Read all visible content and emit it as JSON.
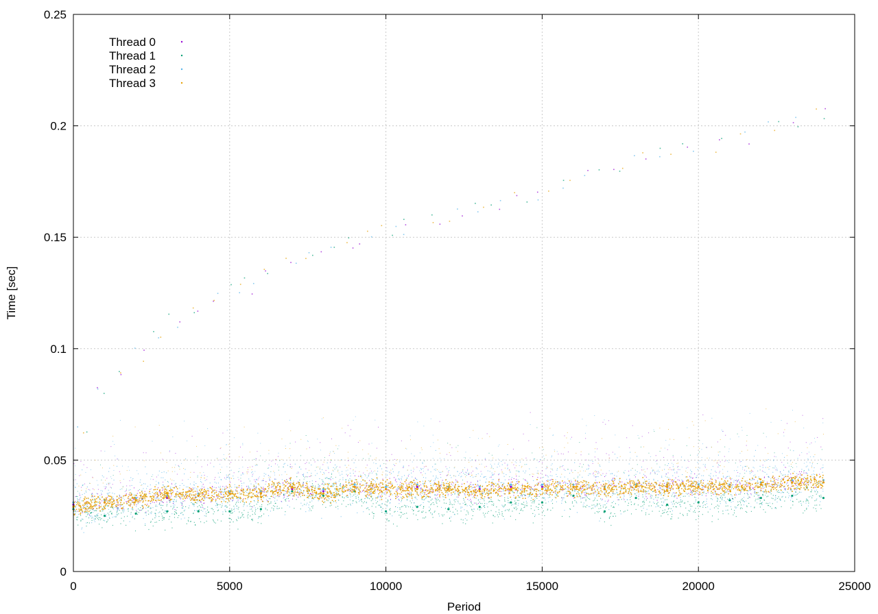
{
  "chart_data": {
    "type": "scatter",
    "title": "",
    "xlabel": "Period",
    "ylabel": "Time [sec]",
    "xlim": [
      0,
      25000
    ],
    "ylim": [
      0,
      0.25
    ],
    "x_ticks": [
      0,
      5000,
      10000,
      15000,
      20000,
      25000
    ],
    "x_tick_labels": [
      "0",
      "5000",
      "10000",
      "15000",
      "20000",
      "25000"
    ],
    "y_ticks": [
      0,
      0.05,
      0.1,
      0.15,
      0.2,
      0.25
    ],
    "y_tick_labels": [
      "0",
      "0.05",
      "0.1",
      "0.15",
      "0.2",
      "0.25"
    ],
    "grid": true,
    "legend_position": "top-left",
    "series": [
      {
        "name": "Thread 0",
        "color": "#9400d3",
        "x": [
          0,
          1000,
          2000,
          3000,
          4000,
          5000,
          6000,
          7000,
          8000,
          9000,
          10000,
          11000,
          12000,
          13000,
          14000,
          15000,
          16000,
          17000,
          18000,
          19000,
          20000,
          21000,
          22000,
          23000,
          24000
        ],
        "y": [
          0.03,
          0.031,
          0.032,
          0.033,
          0.034,
          0.035,
          0.035,
          0.037,
          0.036,
          0.038,
          0.037,
          0.038,
          0.037,
          0.037,
          0.038,
          0.038,
          0.038,
          0.037,
          0.038,
          0.038,
          0.038,
          0.038,
          0.039,
          0.04,
          0.04
        ]
      },
      {
        "name": "Thread 1",
        "color": "#009e73",
        "x": [
          0,
          1000,
          2000,
          3000,
          4000,
          5000,
          6000,
          7000,
          8000,
          9000,
          10000,
          11000,
          12000,
          13000,
          14000,
          15000,
          16000,
          17000,
          18000,
          19000,
          20000,
          21000,
          22000,
          23000,
          24000
        ],
        "y": [
          0.028,
          0.025,
          0.026,
          0.027,
          0.027,
          0.027,
          0.028,
          0.036,
          0.034,
          0.036,
          0.027,
          0.029,
          0.028,
          0.029,
          0.031,
          0.031,
          0.034,
          0.027,
          0.033,
          0.03,
          0.031,
          0.032,
          0.033,
          0.034,
          0.033
        ]
      },
      {
        "name": "Thread 2",
        "color": "#56b4e9",
        "x": [
          0,
          1000,
          2000,
          3000,
          4000,
          5000,
          6000,
          7000,
          8000,
          9000,
          10000,
          11000,
          12000,
          13000,
          14000,
          15000,
          16000,
          17000,
          18000,
          19000,
          20000,
          21000,
          22000,
          23000,
          24000
        ],
        "y": [
          0.031,
          0.032,
          0.033,
          0.034,
          0.035,
          0.036,
          0.036,
          0.038,
          0.037,
          0.039,
          0.038,
          0.039,
          0.038,
          0.038,
          0.039,
          0.039,
          0.039,
          0.038,
          0.039,
          0.039,
          0.039,
          0.039,
          0.04,
          0.041,
          0.041
        ]
      },
      {
        "name": "Thread 3",
        "color": "#e69f00",
        "x": [
          0,
          1000,
          2000,
          3000,
          4000,
          5000,
          6000,
          7000,
          8000,
          9000,
          10000,
          11000,
          12000,
          13000,
          14000,
          15000,
          16000,
          17000,
          18000,
          19000,
          20000,
          21000,
          22000,
          23000,
          24000
        ],
        "y": [
          0.029,
          0.031,
          0.032,
          0.035,
          0.034,
          0.035,
          0.035,
          0.038,
          0.035,
          0.038,
          0.037,
          0.037,
          0.037,
          0.036,
          0.037,
          0.037,
          0.038,
          0.037,
          0.038,
          0.038,
          0.038,
          0.038,
          0.039,
          0.04,
          0.04
        ]
      }
    ],
    "outliers": {
      "x": [
        300,
        900,
        1500,
        2100,
        2700,
        3300,
        3900,
        4500,
        5100,
        5700,
        6300,
        6900,
        7500,
        8100,
        8700,
        9300,
        10100,
        10800,
        11500,
        12200,
        12900,
        13600,
        14300,
        15000,
        15800,
        16600,
        17400,
        18200,
        19000,
        19700,
        20600,
        21500,
        22400,
        23200,
        23900
      ],
      "y": [
        0.065,
        0.08,
        0.09,
        0.098,
        0.104,
        0.112,
        0.118,
        0.122,
        0.125,
        0.128,
        0.133,
        0.137,
        0.141,
        0.145,
        0.148,
        0.15,
        0.152,
        0.155,
        0.158,
        0.16,
        0.163,
        0.165,
        0.168,
        0.17,
        0.174,
        0.178,
        0.181,
        0.184,
        0.187,
        0.19,
        0.192,
        0.195,
        0.198,
        0.2,
        0.204
      ]
    }
  }
}
